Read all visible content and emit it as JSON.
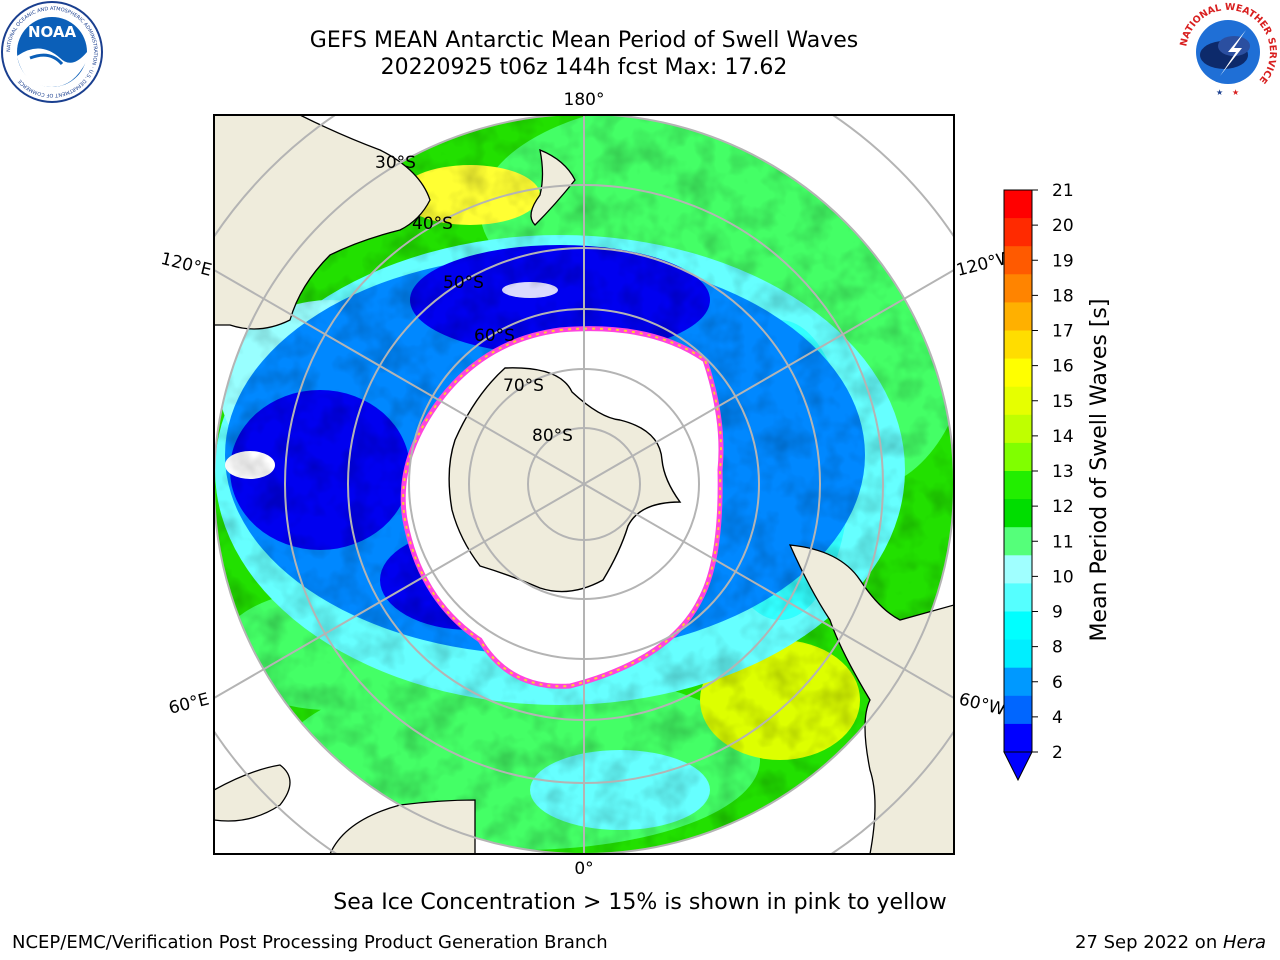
{
  "header": {
    "title_line1": "GEFS MEAN Antarctic Mean Period of Swell Waves",
    "title_line2": "20220925 t06z 144h fcst   Max: 17.62"
  },
  "logos": {
    "left": "NOAA",
    "left_ring_text": "NATIONAL OCEANIC AND ATMOSPHERIC ADMINISTRATION · U.S. DEPARTMENT OF COMMERCE",
    "right_ring_text": "NATIONAL WEATHER SERVICE"
  },
  "map": {
    "projection": "south-polar-stereographic",
    "longitude_labels": [
      "180°",
      "120°E",
      "120°W",
      "60°E",
      "60°W",
      "0°"
    ],
    "latitude_labels": [
      "30°S",
      "40°S",
      "50°S",
      "60°S",
      "70°S",
      "80°S"
    ],
    "colors": {
      "land": "#efecdc",
      "sea_ice": "#ffffff",
      "ice_edge": "#ff44dd",
      "grid": "#b4b4b4"
    }
  },
  "colorbar": {
    "label": "Mean Period of Swell Waves [s]",
    "ticks": [
      "21",
      "20",
      "19",
      "18",
      "17",
      "16",
      "15",
      "14",
      "13",
      "12",
      "11",
      "10",
      "9",
      "8",
      "6",
      "4",
      "2"
    ],
    "colors": [
      "#ff0000",
      "#ff2a00",
      "#ff5a00",
      "#ff8400",
      "#ffb000",
      "#ffdd00",
      "#ffff00",
      "#e6ff00",
      "#bfff00",
      "#80ff00",
      "#22ee00",
      "#00dd00",
      "#55ff7a",
      "#a0ffff",
      "#55ffff",
      "#00ffff",
      "#00eeff",
      "#0099ff",
      "#0066ff",
      "#0000ff"
    ],
    "extend_color": "#0000ff"
  },
  "footer": {
    "note": "Sea Ice Concentration > 15% is shown in pink to yellow",
    "credit_left": "NCEP/EMC/Verification Post Processing Product Generation Branch",
    "date_text": "27 Sep 2022 on ",
    "system": "Hera"
  }
}
